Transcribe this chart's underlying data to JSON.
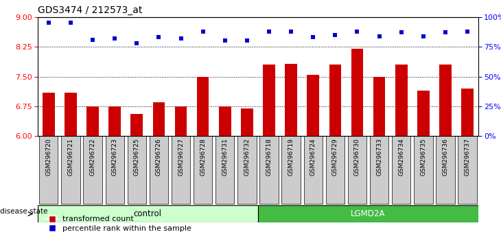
{
  "title": "GDS3474 / 212573_at",
  "samples": [
    "GSM296720",
    "GSM296721",
    "GSM296722",
    "GSM296723",
    "GSM296725",
    "GSM296726",
    "GSM296727",
    "GSM296728",
    "GSM296731",
    "GSM296732",
    "GSM296718",
    "GSM296719",
    "GSM296724",
    "GSM296729",
    "GSM296730",
    "GSM296733",
    "GSM296734",
    "GSM296735",
    "GSM296736",
    "GSM296737"
  ],
  "bar_values": [
    7.1,
    7.1,
    6.75,
    6.75,
    6.55,
    6.85,
    6.75,
    7.5,
    6.75,
    6.7,
    7.8,
    7.82,
    7.55,
    7.8,
    8.2,
    7.5,
    7.8,
    7.15,
    7.8,
    7.2
  ],
  "percentile_values": [
    95,
    95,
    81,
    82,
    78,
    83,
    82,
    88,
    80,
    80,
    88,
    88,
    83,
    85,
    88,
    84,
    87,
    84,
    87,
    88
  ],
  "groups": [
    "control",
    "control",
    "control",
    "control",
    "control",
    "control",
    "control",
    "control",
    "control",
    "control",
    "LGMD2A",
    "LGMD2A",
    "LGMD2A",
    "LGMD2A",
    "LGMD2A",
    "LGMD2A",
    "LGMD2A",
    "LGMD2A",
    "LGMD2A",
    "LGMD2A"
  ],
  "bar_color": "#cc0000",
  "dot_color": "#0000cc",
  "ylim_left": [
    6,
    9
  ],
  "ylim_right": [
    0,
    100
  ],
  "yticks_left": [
    6,
    6.75,
    7.5,
    8.25,
    9
  ],
  "yticks_right": [
    0,
    25,
    50,
    75,
    100
  ],
  "ytick_labels_right": [
    "0%",
    "25%",
    "50%",
    "75%",
    "100%"
  ],
  "hlines": [
    6.75,
    7.5,
    8.25
  ],
  "control_color": "#ccffcc",
  "lgmd_color": "#44bb44",
  "bg_color": "#cccccc",
  "legend_bar_label": "transformed count",
  "legend_dot_label": "percentile rank within the sample",
  "disease_state_label": "disease state"
}
